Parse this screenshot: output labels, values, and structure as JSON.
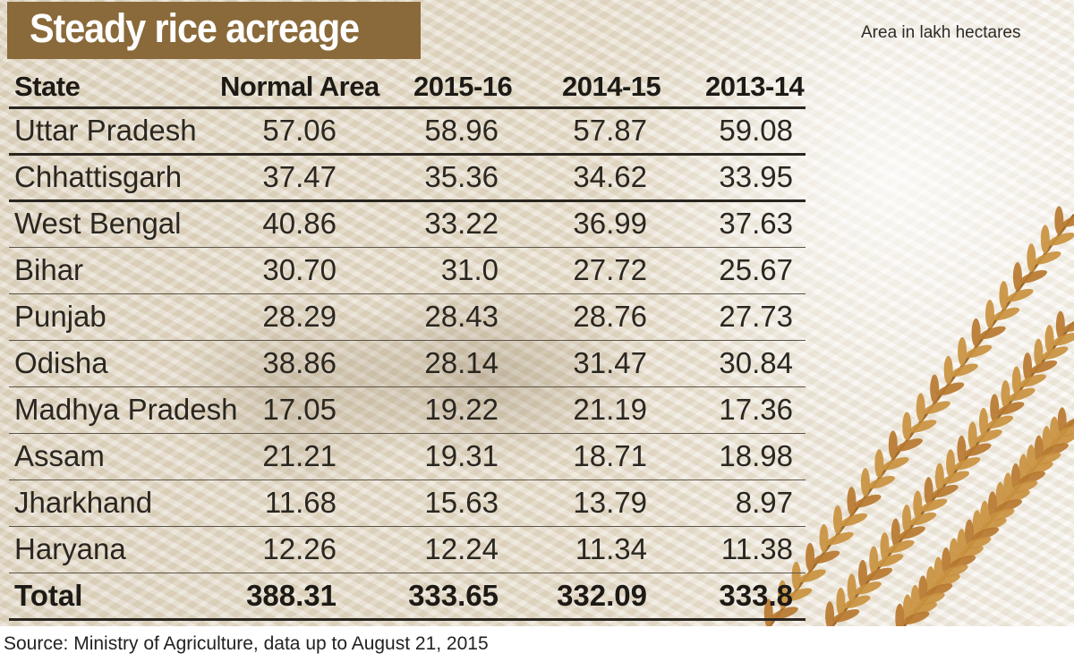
{
  "title": "Steady rice acreage",
  "unit_note": "Area in lakh hectares",
  "source": "Source: Ministry of Agriculture, data up to August 21, 2015",
  "colors": {
    "title_bg": "#8a6a3a",
    "title_text": "#ffffff",
    "text": "#2a2620",
    "grain": "#c9913f"
  },
  "chart_data": {
    "type": "table",
    "title": "Steady rice acreage",
    "columns": [
      "State",
      "Normal Area",
      "2015-16",
      "2014-15",
      "2013-14"
    ],
    "rows": [
      [
        "Uttar Pradesh",
        "57.06",
        "58.96",
        "57.87",
        "59.08"
      ],
      [
        "Chhattisgarh",
        "37.47",
        "35.36",
        "34.62",
        "33.95"
      ],
      [
        "West Bengal",
        "40.86",
        "33.22",
        "36.99",
        "37.63"
      ],
      [
        "Bihar",
        "30.70",
        "31.0",
        "27.72",
        "25.67"
      ],
      [
        "Punjab",
        "28.29",
        "28.43",
        "28.76",
        "27.73"
      ],
      [
        "Odisha",
        "38.86",
        "28.14",
        "31.47",
        "30.84"
      ],
      [
        "Madhya Pradesh",
        "17.05",
        "19.22",
        "21.19",
        "17.36"
      ],
      [
        "Assam",
        "21.21",
        "19.31",
        "18.71",
        "18.98"
      ],
      [
        "Jharkhand",
        "11.68",
        "15.63",
        "13.79",
        "8.97"
      ],
      [
        "Haryana",
        "12.26",
        "12.24",
        "11.34",
        "11.38"
      ]
    ],
    "total": [
      "Total",
      "388.31",
      "333.65",
      "332.09",
      "333.8"
    ],
    "unit": "Area in lakh hectares"
  }
}
